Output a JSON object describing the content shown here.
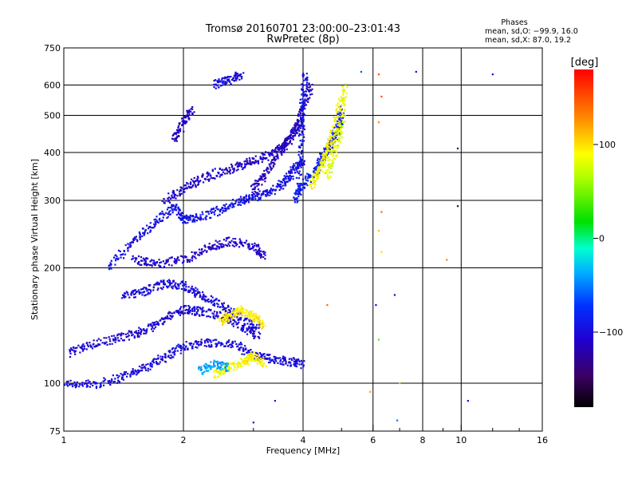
{
  "chart_data": {
    "type": "scatter",
    "title": "Tromsø 20160701 23:00:00–23:01:43",
    "subtitle": "RwPretec (8p)",
    "xlabel": "Frequency [MHz]",
    "ylabel": "Stationary phase Virtual Height [km]",
    "x_scale": "log",
    "y_scale": "log",
    "xlim": [
      1,
      16
    ],
    "ylim": [
      75,
      750
    ],
    "x_ticks": [
      "1",
      "2",
      "4",
      "6",
      "8",
      "10",
      "16"
    ],
    "y_ticks": [
      "75",
      "100",
      "200",
      "300",
      "400",
      "500",
      "600",
      "750"
    ],
    "grid": true,
    "stats": {
      "heading": "Phases",
      "line_o": "mean, sd,O: −99.9, 16.0",
      "line_x": "mean, sd,X:  87.0, 19.2"
    },
    "colorbar": {
      "label": "[deg]",
      "range": [
        -180,
        180
      ],
      "ticks": [
        "100",
        "0",
        "−100"
      ]
    },
    "traces": [
      {
        "x": [
          1.0,
          1.2,
          1.4,
          1.6,
          1.8,
          2.0,
          2.3,
          2.7,
          3.0,
          3.3,
          3.7,
          4.0
        ],
        "y": [
          100,
          99,
          104,
          110,
          117,
          125,
          128,
          126,
          118,
          116,
          114,
          112
        ],
        "phase": -100
      },
      {
        "x": [
          1.03,
          1.2,
          1.4,
          1.6,
          1.8,
          2.0,
          2.2,
          2.5,
          2.8,
          3.1
        ],
        "y": [
          120,
          127,
          132,
          137,
          148,
          156,
          154,
          150,
          140,
          132
        ],
        "phase": -105
      },
      {
        "x": [
          1.4,
          1.6,
          1.8,
          2.0,
          2.2,
          2.5,
          2.8,
          3.1
        ],
        "y": [
          168,
          174,
          182,
          180,
          170,
          160,
          148,
          140
        ],
        "phase": -100
      },
      {
        "x": [
          1.5,
          1.7,
          2.0,
          2.3,
          2.6,
          3.0,
          3.2
        ],
        "y": [
          210,
          205,
          210,
          225,
          235,
          228,
          215
        ],
        "phase": -110
      },
      {
        "x": [
          1.3,
          1.5,
          1.7,
          1.9,
          2.0,
          2.2,
          2.5,
          2.8,
          3.0,
          3.3,
          3.6,
          3.8,
          4.0
        ],
        "y": [
          200,
          235,
          262,
          290,
          268,
          270,
          285,
          300,
          306,
          315,
          335,
          360,
          385
        ],
        "phase": -95
      },
      {
        "x": [
          1.8,
          2.0,
          2.2,
          2.5,
          2.8,
          3.1,
          3.4,
          3.7,
          4.0
        ],
        "y": [
          300,
          320,
          340,
          358,
          370,
          385,
          400,
          440,
          480
        ],
        "phase": -110
      },
      {
        "x": [
          3.0,
          3.2,
          3.5,
          3.8,
          4.0,
          4.2
        ],
        "y": [
          320,
          350,
          400,
          450,
          520,
          600
        ],
        "phase": -115
      },
      {
        "x": [
          3.9,
          3.95,
          4.0,
          4.05
        ],
        "y": [
          320,
          420,
          540,
          650
        ],
        "phase": -95
      },
      {
        "x": [
          3.8,
          4.0,
          4.3,
          4.5,
          4.7,
          4.9,
          5.0
        ],
        "y": [
          300,
          330,
          360,
          390,
          420,
          460,
          520
        ],
        "phase": -85
      },
      {
        "x": [
          4.2,
          4.4,
          4.6,
          4.8,
          5.0
        ],
        "y": [
          330,
          360,
          400,
          460,
          560
        ],
        "phase": 90
      },
      {
        "x": [
          4.6,
          4.8,
          5.0,
          5.1
        ],
        "y": [
          350,
          400,
          470,
          600
        ],
        "phase": 80
      },
      {
        "x": [
          2.5,
          2.6,
          2.8,
          3.0,
          3.2
        ],
        "y": [
          145,
          150,
          155,
          150,
          140
        ],
        "phase": 95
      },
      {
        "x": [
          2.4,
          2.6,
          2.9,
          3.0,
          3.2
        ],
        "y": [
          105,
          110,
          115,
          118,
          112
        ],
        "phase": 90
      },
      {
        "x": [
          2.2,
          2.4,
          2.6
        ],
        "y": [
          108,
          112,
          110
        ],
        "phase": -40
      },
      {
        "x": [
          1.9,
          2.0,
          2.1
        ],
        "y": [
          430,
          480,
          520
        ],
        "phase": -110
      },
      {
        "x": [
          2.4,
          2.6,
          2.8
        ],
        "y": [
          600,
          620,
          640
        ],
        "phase": -100
      }
    ],
    "isolated_points": [
      {
        "x": 6.2,
        "y": 640,
        "phase": 150
      },
      {
        "x": 6.3,
        "y": 560,
        "phase": 150
      },
      {
        "x": 6.2,
        "y": 480,
        "phase": 130
      },
      {
        "x": 6.3,
        "y": 280,
        "phase": 140
      },
      {
        "x": 6.2,
        "y": 250,
        "phase": 110
      },
      {
        "x": 6.3,
        "y": 220,
        "phase": 100
      },
      {
        "x": 6.1,
        "y": 160,
        "phase": -100
      },
      {
        "x": 6.2,
        "y": 130,
        "phase": 40
      },
      {
        "x": 5.9,
        "y": 95,
        "phase": 120
      },
      {
        "x": 6.8,
        "y": 170,
        "phase": -100
      },
      {
        "x": 7.0,
        "y": 100,
        "phase": 110
      },
      {
        "x": 6.9,
        "y": 80,
        "phase": -50
      },
      {
        "x": 7.7,
        "y": 650,
        "phase": -100
      },
      {
        "x": 9.8,
        "y": 410,
        "phase": -140
      },
      {
        "x": 9.8,
        "y": 290,
        "phase": -150
      },
      {
        "x": 9.2,
        "y": 210,
        "phase": 130
      },
      {
        "x": 10.4,
        "y": 90,
        "phase": -100
      },
      {
        "x": 12.0,
        "y": 640,
        "phase": -110
      },
      {
        "x": 4.6,
        "y": 160,
        "phase": 140
      },
      {
        "x": 3.4,
        "y": 90,
        "phase": -90
      },
      {
        "x": 3.0,
        "y": 79,
        "phase": -100
      },
      {
        "x": 5.6,
        "y": 650,
        "phase": -60
      }
    ]
  }
}
